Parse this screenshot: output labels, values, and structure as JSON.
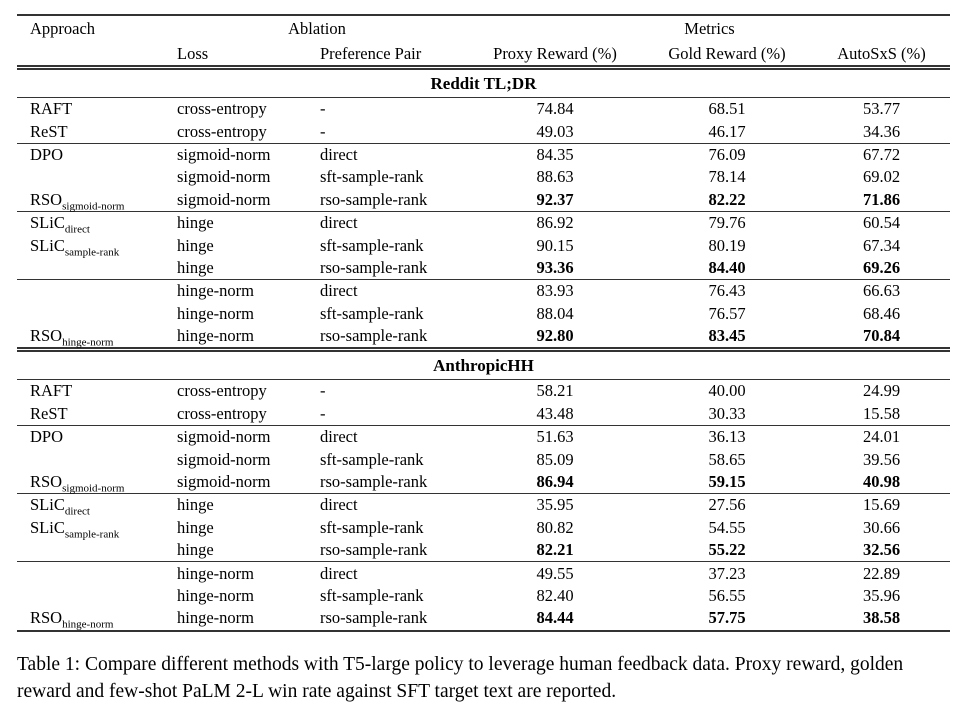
{
  "colors": {
    "text": "#000000",
    "rule": "#333333",
    "background": "#ffffff"
  },
  "header": {
    "approach": "Approach",
    "ablation": "Ablation",
    "metrics": "Metrics",
    "loss": "Loss",
    "preference_pair": "Preference Pair",
    "proxy_reward": "Proxy Reward (%)",
    "gold_reward": "Gold Reward (%)",
    "autosxs": "AutoSxS (%)"
  },
  "sections": [
    {
      "title": "Reddit TL;DR",
      "groups": [
        {
          "rows": [
            {
              "approach": "RAFT",
              "approach_sub": "",
              "loss": "cross-entropy",
              "preference_pair": "-",
              "proxy": "74.84",
              "gold": "68.51",
              "autosxs": "53.77",
              "bold": false
            },
            {
              "approach": "ReST",
              "approach_sub": "",
              "loss": "cross-entropy",
              "preference_pair": "-",
              "proxy": "49.03",
              "gold": "46.17",
              "autosxs": "34.36",
              "bold": false
            }
          ]
        },
        {
          "rows": [
            {
              "approach": "DPO",
              "approach_sub": "",
              "loss": "sigmoid-norm",
              "preference_pair": "direct",
              "proxy": "84.35",
              "gold": "76.09",
              "autosxs": "67.72",
              "bold": false
            },
            {
              "approach": "",
              "approach_sub": "",
              "loss": "sigmoid-norm",
              "preference_pair": "sft-sample-rank",
              "proxy": "88.63",
              "gold": "78.14",
              "autosxs": "69.02",
              "bold": false
            },
            {
              "approach": "RSO",
              "approach_sub": "sigmoid-norm",
              "loss": "sigmoid-norm",
              "preference_pair": "rso-sample-rank",
              "proxy": "92.37",
              "gold": "82.22",
              "autosxs": "71.86",
              "bold": true
            }
          ]
        },
        {
          "rows": [
            {
              "approach": "SLiC",
              "approach_sub": "direct",
              "loss": "hinge",
              "preference_pair": "direct",
              "proxy": "86.92",
              "gold": "79.76",
              "autosxs": "60.54",
              "bold": false
            },
            {
              "approach": "SLiC",
              "approach_sub": "sample-rank",
              "loss": "hinge",
              "preference_pair": "sft-sample-rank",
              "proxy": "90.15",
              "gold": "80.19",
              "autosxs": "67.34",
              "bold": false
            },
            {
              "approach": "",
              "approach_sub": "",
              "loss": "hinge",
              "preference_pair": "rso-sample-rank",
              "proxy": "93.36",
              "gold": "84.40",
              "autosxs": "69.26",
              "bold": true
            }
          ]
        },
        {
          "rows": [
            {
              "approach": "",
              "approach_sub": "",
              "loss": "hinge-norm",
              "preference_pair": "direct",
              "proxy": "83.93",
              "gold": "76.43",
              "autosxs": "66.63",
              "bold": false
            },
            {
              "approach": "",
              "approach_sub": "",
              "loss": "hinge-norm",
              "preference_pair": "sft-sample-rank",
              "proxy": "88.04",
              "gold": "76.57",
              "autosxs": "68.46",
              "bold": false
            },
            {
              "approach": "RSO",
              "approach_sub": "hinge-norm",
              "loss": "hinge-norm",
              "preference_pair": "rso-sample-rank",
              "proxy": "92.80",
              "gold": "83.45",
              "autosxs": "70.84",
              "bold": true
            }
          ]
        }
      ]
    },
    {
      "title": "AnthropicHH",
      "groups": [
        {
          "rows": [
            {
              "approach": "RAFT",
              "approach_sub": "",
              "loss": "cross-entropy",
              "preference_pair": "-",
              "proxy": "58.21",
              "gold": "40.00",
              "autosxs": "24.99",
              "bold": false
            },
            {
              "approach": "ReST",
              "approach_sub": "",
              "loss": "cross-entropy",
              "preference_pair": "-",
              "proxy": "43.48",
              "gold": "30.33",
              "autosxs": "15.58",
              "bold": false
            }
          ]
        },
        {
          "rows": [
            {
              "approach": "DPO",
              "approach_sub": "",
              "loss": "sigmoid-norm",
              "preference_pair": "direct",
              "proxy": "51.63",
              "gold": "36.13",
              "autosxs": "24.01",
              "bold": false
            },
            {
              "approach": "",
              "approach_sub": "",
              "loss": "sigmoid-norm",
              "preference_pair": "sft-sample-rank",
              "proxy": "85.09",
              "gold": "58.65",
              "autosxs": "39.56",
              "bold": false
            },
            {
              "approach": "RSO",
              "approach_sub": "sigmoid-norm",
              "loss": "sigmoid-norm",
              "preference_pair": "rso-sample-rank",
              "proxy": "86.94",
              "gold": "59.15",
              "autosxs": "40.98",
              "bold": true
            }
          ]
        },
        {
          "rows": [
            {
              "approach": "SLiC",
              "approach_sub": "direct",
              "loss": "hinge",
              "preference_pair": "direct",
              "proxy": "35.95",
              "gold": "27.56",
              "autosxs": "15.69",
              "bold": false
            },
            {
              "approach": "SLiC",
              "approach_sub": "sample-rank",
              "loss": "hinge",
              "preference_pair": "sft-sample-rank",
              "proxy": "80.82",
              "gold": "54.55",
              "autosxs": "30.66",
              "bold": false
            },
            {
              "approach": "",
              "approach_sub": "",
              "loss": "hinge",
              "preference_pair": "rso-sample-rank",
              "proxy": "82.21",
              "gold": "55.22",
              "autosxs": "32.56",
              "bold": true
            }
          ]
        },
        {
          "rows": [
            {
              "approach": "",
              "approach_sub": "",
              "loss": "hinge-norm",
              "preference_pair": "direct",
              "proxy": "49.55",
              "gold": "37.23",
              "autosxs": "22.89",
              "bold": false
            },
            {
              "approach": "",
              "approach_sub": "",
              "loss": "hinge-norm",
              "preference_pair": "sft-sample-rank",
              "proxy": "82.40",
              "gold": "56.55",
              "autosxs": "35.96",
              "bold": false
            },
            {
              "approach": "RSO",
              "approach_sub": "hinge-norm",
              "loss": "hinge-norm",
              "preference_pair": "rso-sample-rank",
              "proxy": "84.44",
              "gold": "57.75",
              "autosxs": "38.58",
              "bold": true
            }
          ]
        }
      ]
    }
  ],
  "caption": "Table 1: Compare different methods with T5-large policy to leverage human feedback data. Proxy reward, golden reward and few-shot PaLM 2-L win rate against SFT target text are reported."
}
